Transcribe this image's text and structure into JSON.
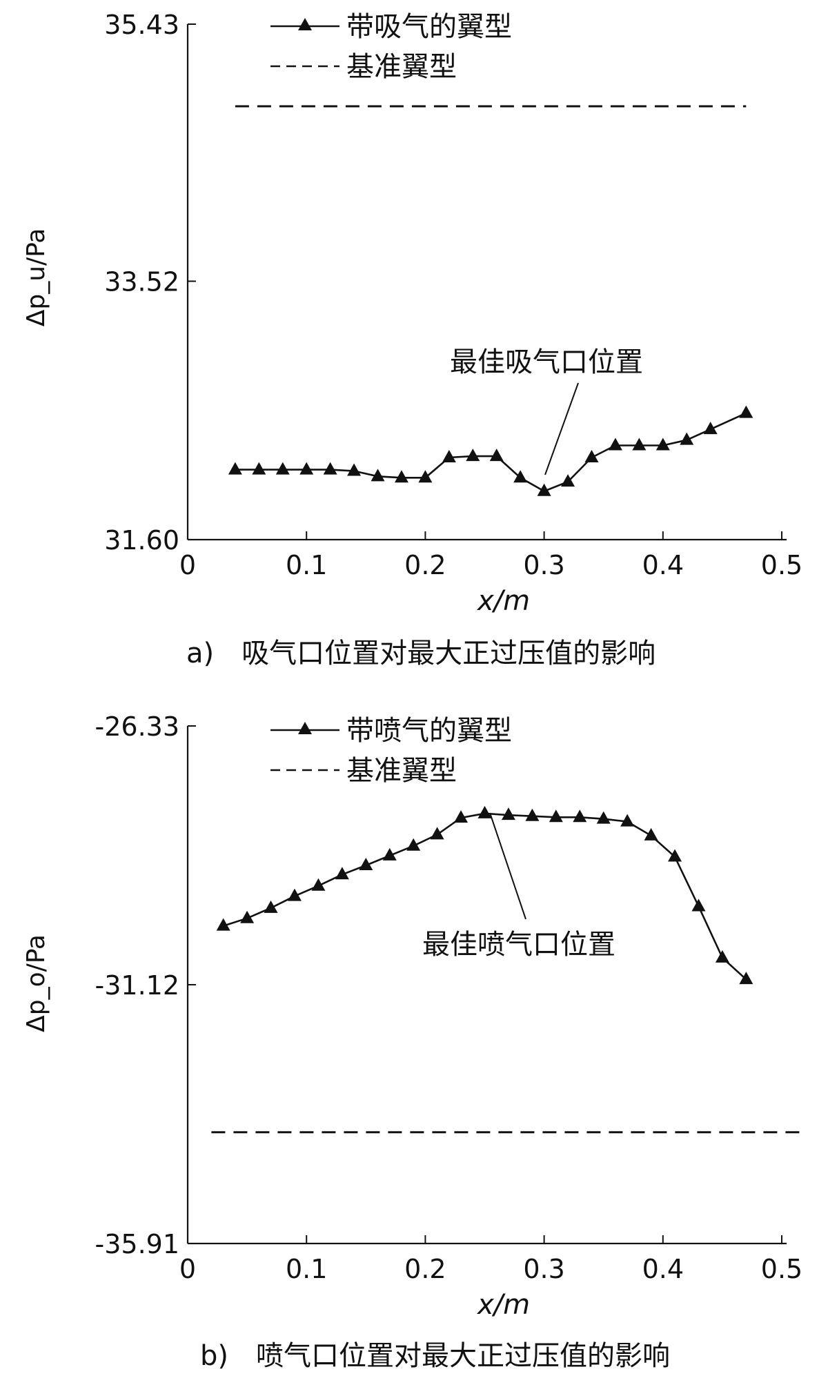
{
  "chart_data": [
    {
      "type": "line",
      "caption": "a)　吸气口位置对最大正过压值的影响",
      "xlabel": "x/m",
      "ylabel": "Δp_u/Pa",
      "xlim": [
        0,
        0.5
      ],
      "ylim": [
        31.6,
        35.43
      ],
      "xticks": [
        "0",
        "0.1",
        "0.2",
        "0.3",
        "0.4",
        "0.5"
      ],
      "yticks": [
        "31.60",
        "33.52",
        "35.43"
      ],
      "legend_position": "top",
      "annotation": {
        "text": "最佳吸气口位置",
        "x": 0.3,
        "y": 32.0
      },
      "series": [
        {
          "name": "带吸气的翼型",
          "style": "solid-triangle",
          "x": [
            0.04,
            0.06,
            0.08,
            0.1,
            0.12,
            0.14,
            0.16,
            0.18,
            0.2,
            0.22,
            0.24,
            0.26,
            0.28,
            0.3,
            0.32,
            0.34,
            0.36,
            0.38,
            0.4,
            0.42,
            0.44,
            0.47
          ],
          "y": [
            32.12,
            32.12,
            32.12,
            32.12,
            32.12,
            32.11,
            32.07,
            32.06,
            32.06,
            32.21,
            32.22,
            32.22,
            32.06,
            31.96,
            32.03,
            32.21,
            32.3,
            32.3,
            32.3,
            32.34,
            32.42,
            32.54
          ]
        },
        {
          "name": "基准翼型",
          "style": "dashed",
          "x": [
            0.04,
            0.47
          ],
          "y": [
            34.82,
            34.82
          ]
        }
      ]
    },
    {
      "type": "line",
      "caption": "b)　喷气口位置对最大正过压值的影响",
      "xlabel": "x/m",
      "ylabel": "Δp_o/Pa",
      "xlim": [
        0,
        0.5
      ],
      "ylim": [
        -35.91,
        -26.33
      ],
      "xticks": [
        "0",
        "0.1",
        "0.2",
        "0.3",
        "0.4",
        "0.5"
      ],
      "yticks": [
        "-26.33",
        "-31.12",
        "-35.91"
      ],
      "legend_position": "top",
      "annotation": {
        "text": "最佳喷气口位置",
        "x": 0.25,
        "y": -27.9
      },
      "series": [
        {
          "name": "带喷气的翼型",
          "style": "solid-triangle",
          "x": [
            0.03,
            0.05,
            0.07,
            0.09,
            0.11,
            0.13,
            0.15,
            0.17,
            0.19,
            0.21,
            0.23,
            0.25,
            0.27,
            0.29,
            0.31,
            0.33,
            0.35,
            0.37,
            0.39,
            0.41,
            0.43,
            0.45,
            0.47
          ],
          "y": [
            -30.03,
            -29.89,
            -29.7,
            -29.48,
            -29.29,
            -29.08,
            -28.91,
            -28.73,
            -28.55,
            -28.34,
            -28.03,
            -27.95,
            -27.98,
            -28.0,
            -28.02,
            -28.02,
            -28.05,
            -28.1,
            -28.36,
            -28.75,
            -29.67,
            -30.62,
            -31.02
          ]
        },
        {
          "name": "基准翼型",
          "style": "dashed",
          "x": [
            0.02,
            0.52
          ],
          "y": [
            -33.85,
            -33.85
          ]
        }
      ]
    }
  ]
}
